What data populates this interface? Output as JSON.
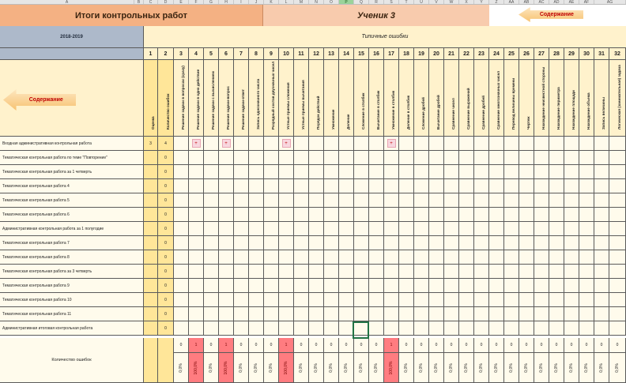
{
  "column_letters": [
    "A",
    "B",
    "C",
    "D",
    "E",
    "F",
    "G",
    "H",
    "I",
    "J",
    "K",
    "L",
    "M",
    "N",
    "O",
    "P",
    "Q",
    "R",
    "S",
    "T",
    "U",
    "V",
    "W",
    "X",
    "Y",
    "Z",
    "AA",
    "AB",
    "AC",
    "AD",
    "AE",
    "AF",
    "AG"
  ],
  "selected_column": "P",
  "title_left": "Итоги контрольных работ",
  "title_right": "Ученик 3",
  "nav_button_label": "Содержание",
  "year_label": "2018-2019",
  "typical_errors_label": "Типичные ошибки",
  "column_numbers": [
    "1",
    "2",
    "3",
    "4",
    "5",
    "6",
    "7",
    "8",
    "9",
    "10",
    "11",
    "12",
    "13",
    "14",
    "15",
    "16",
    "17",
    "18",
    "19",
    "20",
    "21",
    "22",
    "23",
    "24",
    "25",
    "26",
    "27",
    "28",
    "29",
    "30",
    "31",
    "32"
  ],
  "column_headers": [
    "Оценка",
    "Количество ошибок",
    "Решение задачи в вопросах (сразу)",
    "Решение задачи в одно действие",
    "Решение задачи с вычислением",
    "Решение задачи-вопрос",
    "Решение задачи-ответ",
    "Запись однозначного числа",
    "Разрядный состав двузначных чисел",
    "Устные приемы сложения",
    "Устные приемы вычитания",
    "Порядок действий",
    "Умножение",
    "Деление",
    "Сложение в столбик",
    "Вычитание в столбик",
    "Умножение в столбик",
    "Деление в столбик",
    "Сложение дробей",
    "Вычитание дробей",
    "Сравнение чисел",
    "Сравнение выражений",
    "Сравнение дробей",
    "Сравнение многозначных чисел",
    "Перевод величины времени",
    "Чертеж",
    "Нахождение неизвестной стороны",
    "Нахождение периметра",
    "Нахождение площади",
    "Нахождение объема",
    "Запись величины",
    "Логическая (занимательная) задача"
  ],
  "rows": [
    {
      "label": "Входная административная контрольная работа",
      "grade": "3",
      "errors": "4"
    },
    {
      "label": "Тематическая контрольная работа по теме \"Повторение\"",
      "grade": "",
      "errors": "0"
    },
    {
      "label": "Тематическая контрольная работа за 1 четверть",
      "grade": "",
      "errors": "0"
    },
    {
      "label": "Тематическая контрольная работа 4",
      "grade": "",
      "errors": "0"
    },
    {
      "label": "Тематическая контрольная работа 5",
      "grade": "",
      "errors": "0"
    },
    {
      "label": "Тематическая контрольная работа 6",
      "grade": "",
      "errors": "0"
    },
    {
      "label": "Административная контрольная работа за 1 полугодие",
      "grade": "",
      "errors": "0"
    },
    {
      "label": "Тематическая контрольная работа 7",
      "grade": "",
      "errors": "0"
    },
    {
      "label": "Тематическая контрольная работа 8",
      "grade": "",
      "errors": "0"
    },
    {
      "label": "Тематическая контрольная работа за 3 четверть",
      "grade": "",
      "errors": "0"
    },
    {
      "label": "Тематическая контрольная работа 9",
      "grade": "",
      "errors": "0"
    },
    {
      "label": "Тематическая контрольная работа 10",
      "grade": "",
      "errors": "0"
    },
    {
      "label": "Тематическая контрольная работа 11",
      "grade": "",
      "errors": "0"
    },
    {
      "label": "Административная итоговая контрольная работа",
      "grade": "",
      "errors": "0"
    }
  ],
  "error_marks": {
    "row": 0,
    "columns": [
      4,
      6,
      10,
      17
    ],
    "symbol": "+"
  },
  "error_count_label": "Количество ошибок",
  "error_counts": [
    "0",
    "1",
    "0",
    "1",
    "0",
    "0",
    "0",
    "1",
    "0",
    "0",
    "0",
    "0",
    "0",
    "0",
    "1",
    "0",
    "0",
    "0",
    "0",
    "0",
    "0",
    "0",
    "0",
    "0",
    "0",
    "0",
    "0",
    "0",
    "0",
    "0"
  ],
  "error_percents": [
    "0,0%",
    "100,0%",
    "0,0%",
    "100,0%",
    "0,0%",
    "0,0%",
    "0,0%",
    "100,0%",
    "0,0%",
    "0,0%",
    "0,0%",
    "0,0%",
    "0,0%",
    "0,0%",
    "100,0%",
    "0,0%",
    "0,0%",
    "0,0%",
    "0,0%",
    "0,0%",
    "0,0%",
    "0,0%",
    "0,0%",
    "0,0%",
    "0,0%",
    "0,0%",
    "0,0%",
    "0,0%",
    "0,0%",
    "0,0%"
  ],
  "colors": {
    "title_left": "#f4b183",
    "title_right": "#f8cbad",
    "header_blue": "#adb9ca",
    "cell_cream": "#fffbec",
    "highlight_red": "#ff7c80",
    "mark_pink": "#f8d7df",
    "nav_text": "#c00000"
  }
}
